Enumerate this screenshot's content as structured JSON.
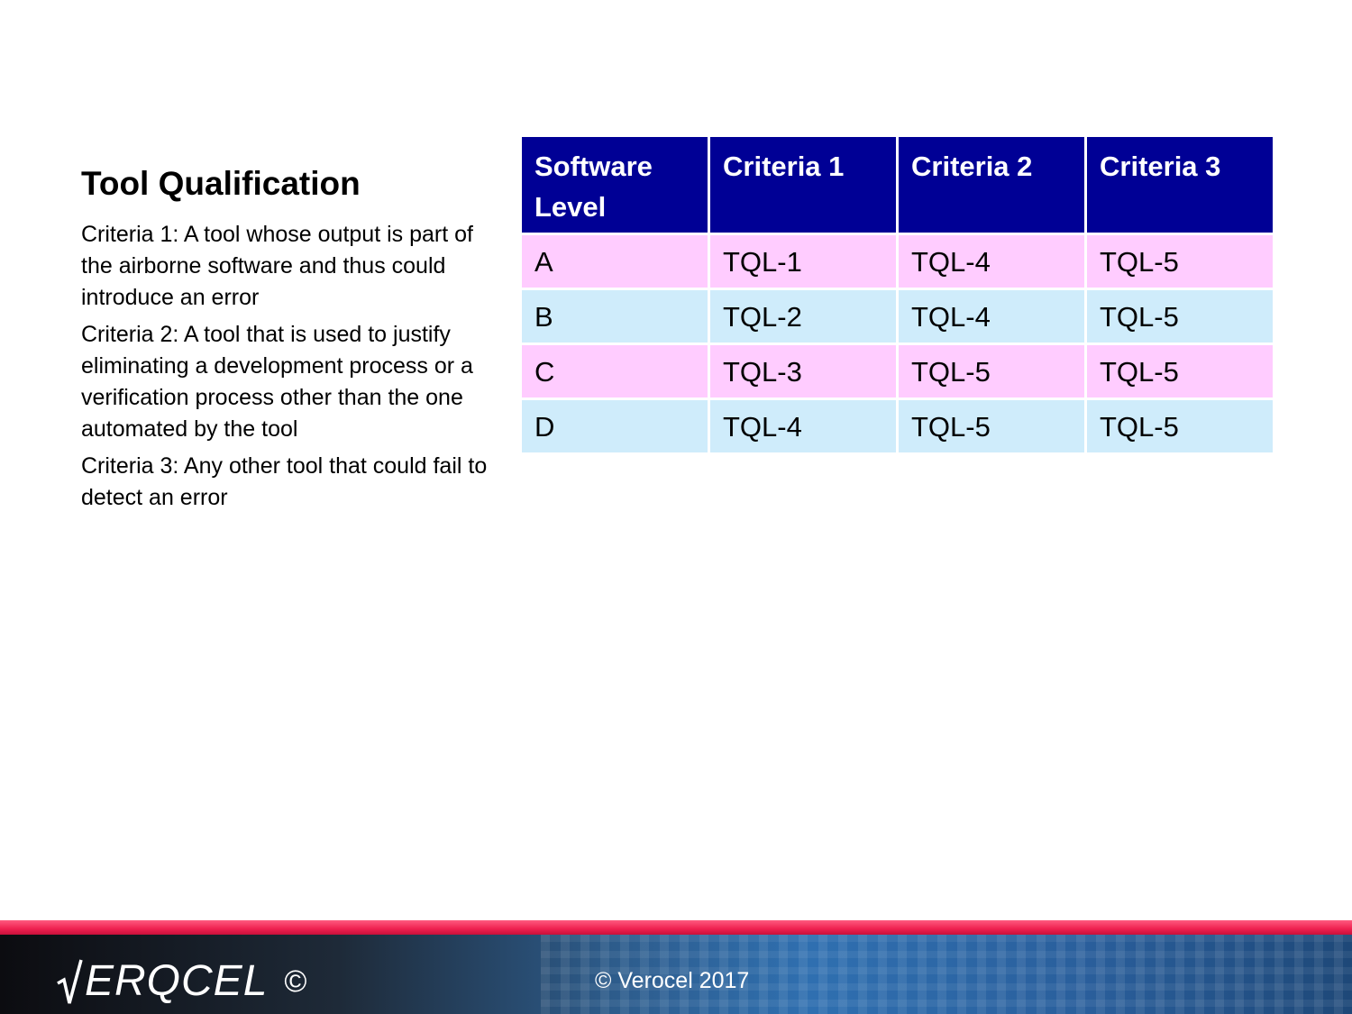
{
  "slide": {
    "title": "Tool Qualification",
    "criteria": [
      "Criteria 1: A tool whose output is part of the airborne software and thus could introduce an error",
      "Criteria 2: A tool that is used to justify eliminating a development process or a verification process other than the one automated by the tool",
      "Criteria 3: Any other tool that could fail to detect an error"
    ]
  },
  "table": {
    "headers": [
      "Software Level",
      "Criteria 1",
      "Criteria 2",
      "Criteria 3"
    ],
    "rows": [
      [
        "A",
        "TQL-1",
        "TQL-4",
        "TQL-5"
      ],
      [
        "B",
        "TQL-2",
        "TQL-4",
        "TQL-5"
      ],
      [
        "C",
        "TQL-3",
        "TQL-5",
        "TQL-5"
      ],
      [
        "D",
        "TQL-4",
        "TQL-5",
        "TQL-5"
      ]
    ],
    "colors": {
      "header": "#000095",
      "row_pink": "#ffccff",
      "row_blue": "#cfecfb"
    }
  },
  "footer": {
    "logo_text": "ERQCEL",
    "logo_copyright": "©",
    "copyright": "© Verocel 2017",
    "accent_color": "#ee2050",
    "logo_icon": "check-radical-icon"
  }
}
